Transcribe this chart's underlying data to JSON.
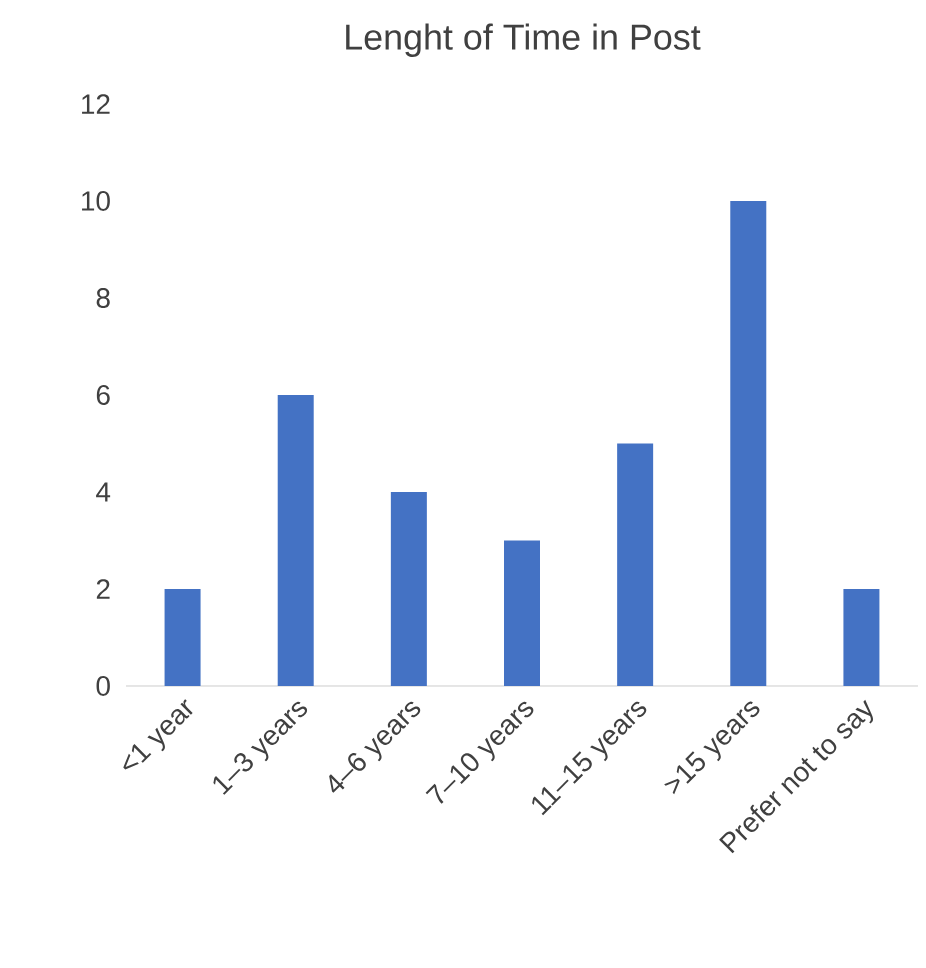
{
  "chart_data": {
    "type": "bar",
    "title": "Lenght of Time in Post",
    "categories": [
      "<1 year",
      "1–3 years",
      "4–6 years",
      "7–10 years",
      "11–15 years",
      ">15 years",
      "Prefer not to say"
    ],
    "values": [
      2,
      6,
      4,
      3,
      5,
      10,
      2
    ],
    "color": "#4472c4",
    "ylim": [
      0,
      12
    ],
    "yticks": [
      0,
      2,
      4,
      6,
      8,
      10,
      12
    ]
  }
}
